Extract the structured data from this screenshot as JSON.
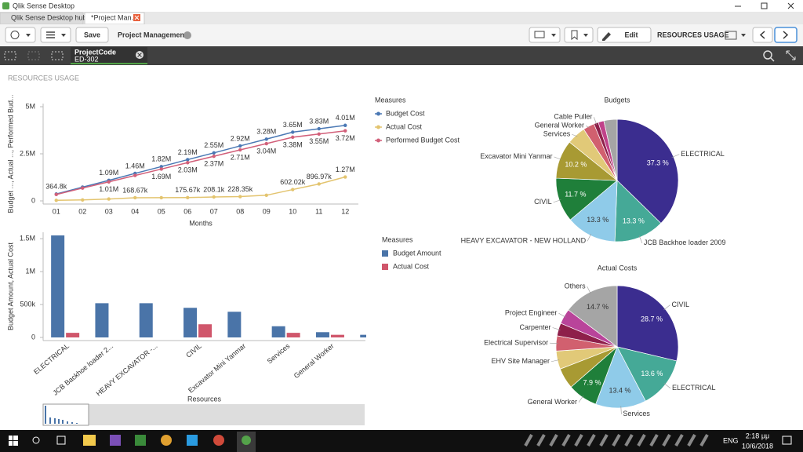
{
  "window": {
    "title": "Qlik Sense Desktop"
  },
  "tabs": [
    "Qlik Sense Desktop hub",
    "*Project Man..."
  ],
  "toolbar": {
    "save": "Save",
    "app_name": "Project Management",
    "edit": "Edit",
    "sheet_name": "RESOURCES USAGE"
  },
  "selection": {
    "field": "ProjectCode",
    "value": "ED-302"
  },
  "sheet_title": "RESOURCES USAGE",
  "chart_data": [
    {
      "type": "line",
      "y_label": "Budget ..., Actual ..., Performed Bud...",
      "x_label": "Months",
      "categories": [
        "01",
        "02",
        "03",
        "04",
        "05",
        "06",
        "07",
        "08",
        "09",
        "10",
        "11",
        "12"
      ],
      "ylim": [
        0,
        5000000
      ],
      "yticks": [
        0,
        {
          "value": 2500000,
          "label": "2.5M"
        },
        {
          "value": 5000000,
          "label": "5M"
        }
      ],
      "grid": false,
      "legend_title": "Measures",
      "series": [
        {
          "name": "Budget Cost",
          "color": "#4a78b4",
          "label_position": "above",
          "values": [
            364800,
            730000,
            1090000,
            1460000,
            1820000,
            2190000,
            2550000,
            2920000,
            3280000,
            3650000,
            3830000,
            4010000
          ],
          "value_labels": [
            "364.8k",
            null,
            "1.09M",
            "1.46M",
            "1.82M",
            "2.19M",
            "2.55M",
            "2.92M",
            "3.28M",
            "3.65M",
            "3.83M",
            "4.01M"
          ]
        },
        {
          "name": "Actual Cost",
          "color": "#e3c46f",
          "label_position": "above",
          "values": [
            30000,
            50000,
            100000,
            168670,
            170000,
            175670,
            208100,
            228350,
            300000,
            602020,
            896970,
            1270000
          ],
          "value_labels": [
            null,
            null,
            null,
            "168.67k",
            null,
            "175.67k",
            "208.1k",
            "228.35k",
            null,
            "602.02k",
            "896.97k",
            "1.27M"
          ]
        },
        {
          "name": "Performed Budget Cost",
          "color": "#d2607a",
          "label_position": "below",
          "values": [
            340000,
            680000,
            1010000,
            1350000,
            1690000,
            2030000,
            2370000,
            2710000,
            3040000,
            3380000,
            3550000,
            3720000
          ],
          "value_labels": [
            null,
            null,
            "1.01M",
            null,
            "1.69M",
            "2.03M",
            "2.37M",
            "2.71M",
            "3.04M",
            "3.38M",
            "3.55M",
            "3.72M"
          ]
        }
      ]
    },
    {
      "type": "bar",
      "y_label": "Budget Amount, Actual Cost",
      "x_label": "Resources",
      "categories": [
        "ELECTRICAL",
        "JCB Backhoe loader 2...",
        "HEAVY EXCAVATOR -...",
        "CIVIL",
        "Excavator Mini Yanmar",
        "Services",
        "General Worker",
        null
      ],
      "ylim": [
        0,
        1550000
      ],
      "yticks": [
        0,
        {
          "value": 500000,
          "label": "500k"
        },
        {
          "value": 1000000,
          "label": "1M"
        },
        {
          "value": 1500000,
          "label": "1.5M"
        }
      ],
      "grid": false,
      "legend_title": "Measures",
      "series": [
        {
          "name": "Budget Amount",
          "color": "#4a74a8",
          "values": [
            1550000,
            520000,
            520000,
            450000,
            390000,
            170000,
            80000,
            40000
          ]
        },
        {
          "name": "Actual Cost",
          "color": "#d0566b",
          "values": [
            70000,
            0,
            0,
            200000,
            0,
            70000,
            40000,
            0
          ]
        }
      ]
    },
    {
      "type": "pie",
      "title": "Budgets",
      "categories": [
        "ELECTRICAL",
        "JCB Backhoe loader 2009",
        "HEAVY EXCAVATOR - NEW HOLLAND",
        "CIVIL",
        "Excavator Mini Yanmar",
        "Services",
        "General Worker",
        "Cable Puller",
        null,
        null
      ],
      "values": [
        37.3,
        13.3,
        13.3,
        11.7,
        10.2,
        5.0,
        3.0,
        1.2,
        1.5,
        3.5
      ],
      "value_labels": [
        "37.3 %",
        "13.3 %",
        "13.3 %",
        "11.7 %",
        "10.2 %",
        null,
        null,
        null,
        null,
        null
      ],
      "colors": [
        "#3b2d8f",
        "#45a997",
        "#8fcbe9",
        "#1f7f3a",
        "#a89a33",
        "#e1c978",
        "#d1606f",
        "#8e1f4a",
        "#c0428a",
        "#a5a5a5"
      ]
    },
    {
      "type": "pie",
      "title": "Actual Costs",
      "categories": [
        "CIVIL",
        "ELECTRICAL",
        "Services",
        "General Worker",
        null,
        "EHV Site Manager",
        "Electrical Supervisor",
        "Carpenter",
        "Project Engineer",
        "Others"
      ],
      "values": [
        28.7,
        13.6,
        13.4,
        7.9,
        5.5,
        4.8,
        4.0,
        3.4,
        4.0,
        14.7
      ],
      "value_labels": [
        "28.7 %",
        "13.6 %",
        "13.4 %",
        "7.9 %",
        null,
        null,
        null,
        null,
        null,
        "14.7 %"
      ],
      "colors": [
        "#3b2d8f",
        "#45a997",
        "#8fcbe9",
        "#1f7f3a",
        "#a89a33",
        "#e1c978",
        "#d1606f",
        "#8e1f4a",
        "#b9449a",
        "#a5a5a5"
      ]
    }
  ],
  "taskbar": {
    "language": "ENG",
    "time": "2:18 μμ",
    "date": "10/6/2018"
  }
}
